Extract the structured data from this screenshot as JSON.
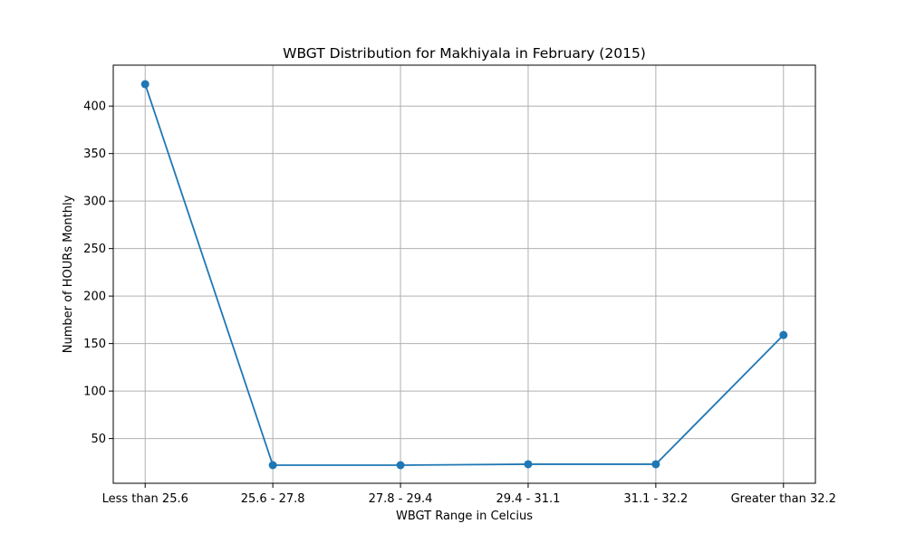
{
  "chart_data": {
    "type": "line",
    "title": "WBGT Distribution for Makhiyala in February (2015)",
    "xlabel": "WBGT Range in Celcius",
    "ylabel": "Number of HOURs Monthly",
    "categories": [
      "Less than 25.6",
      "25.6 - 27.8",
      "27.8 - 29.4",
      "29.4 - 31.1",
      "31.1 - 32.2",
      "Greater than 32.2"
    ],
    "series": [
      {
        "values": [
          423,
          22,
          22,
          23,
          23,
          159
        ]
      }
    ],
    "yticks": [
      50,
      100,
      150,
      200,
      250,
      300,
      350,
      400
    ],
    "ylim": [
      2.95,
      443.05
    ],
    "grid": true,
    "colors": {
      "line": "#1f77b4",
      "grid": "#b0b0b0",
      "axes": "#000000"
    }
  }
}
